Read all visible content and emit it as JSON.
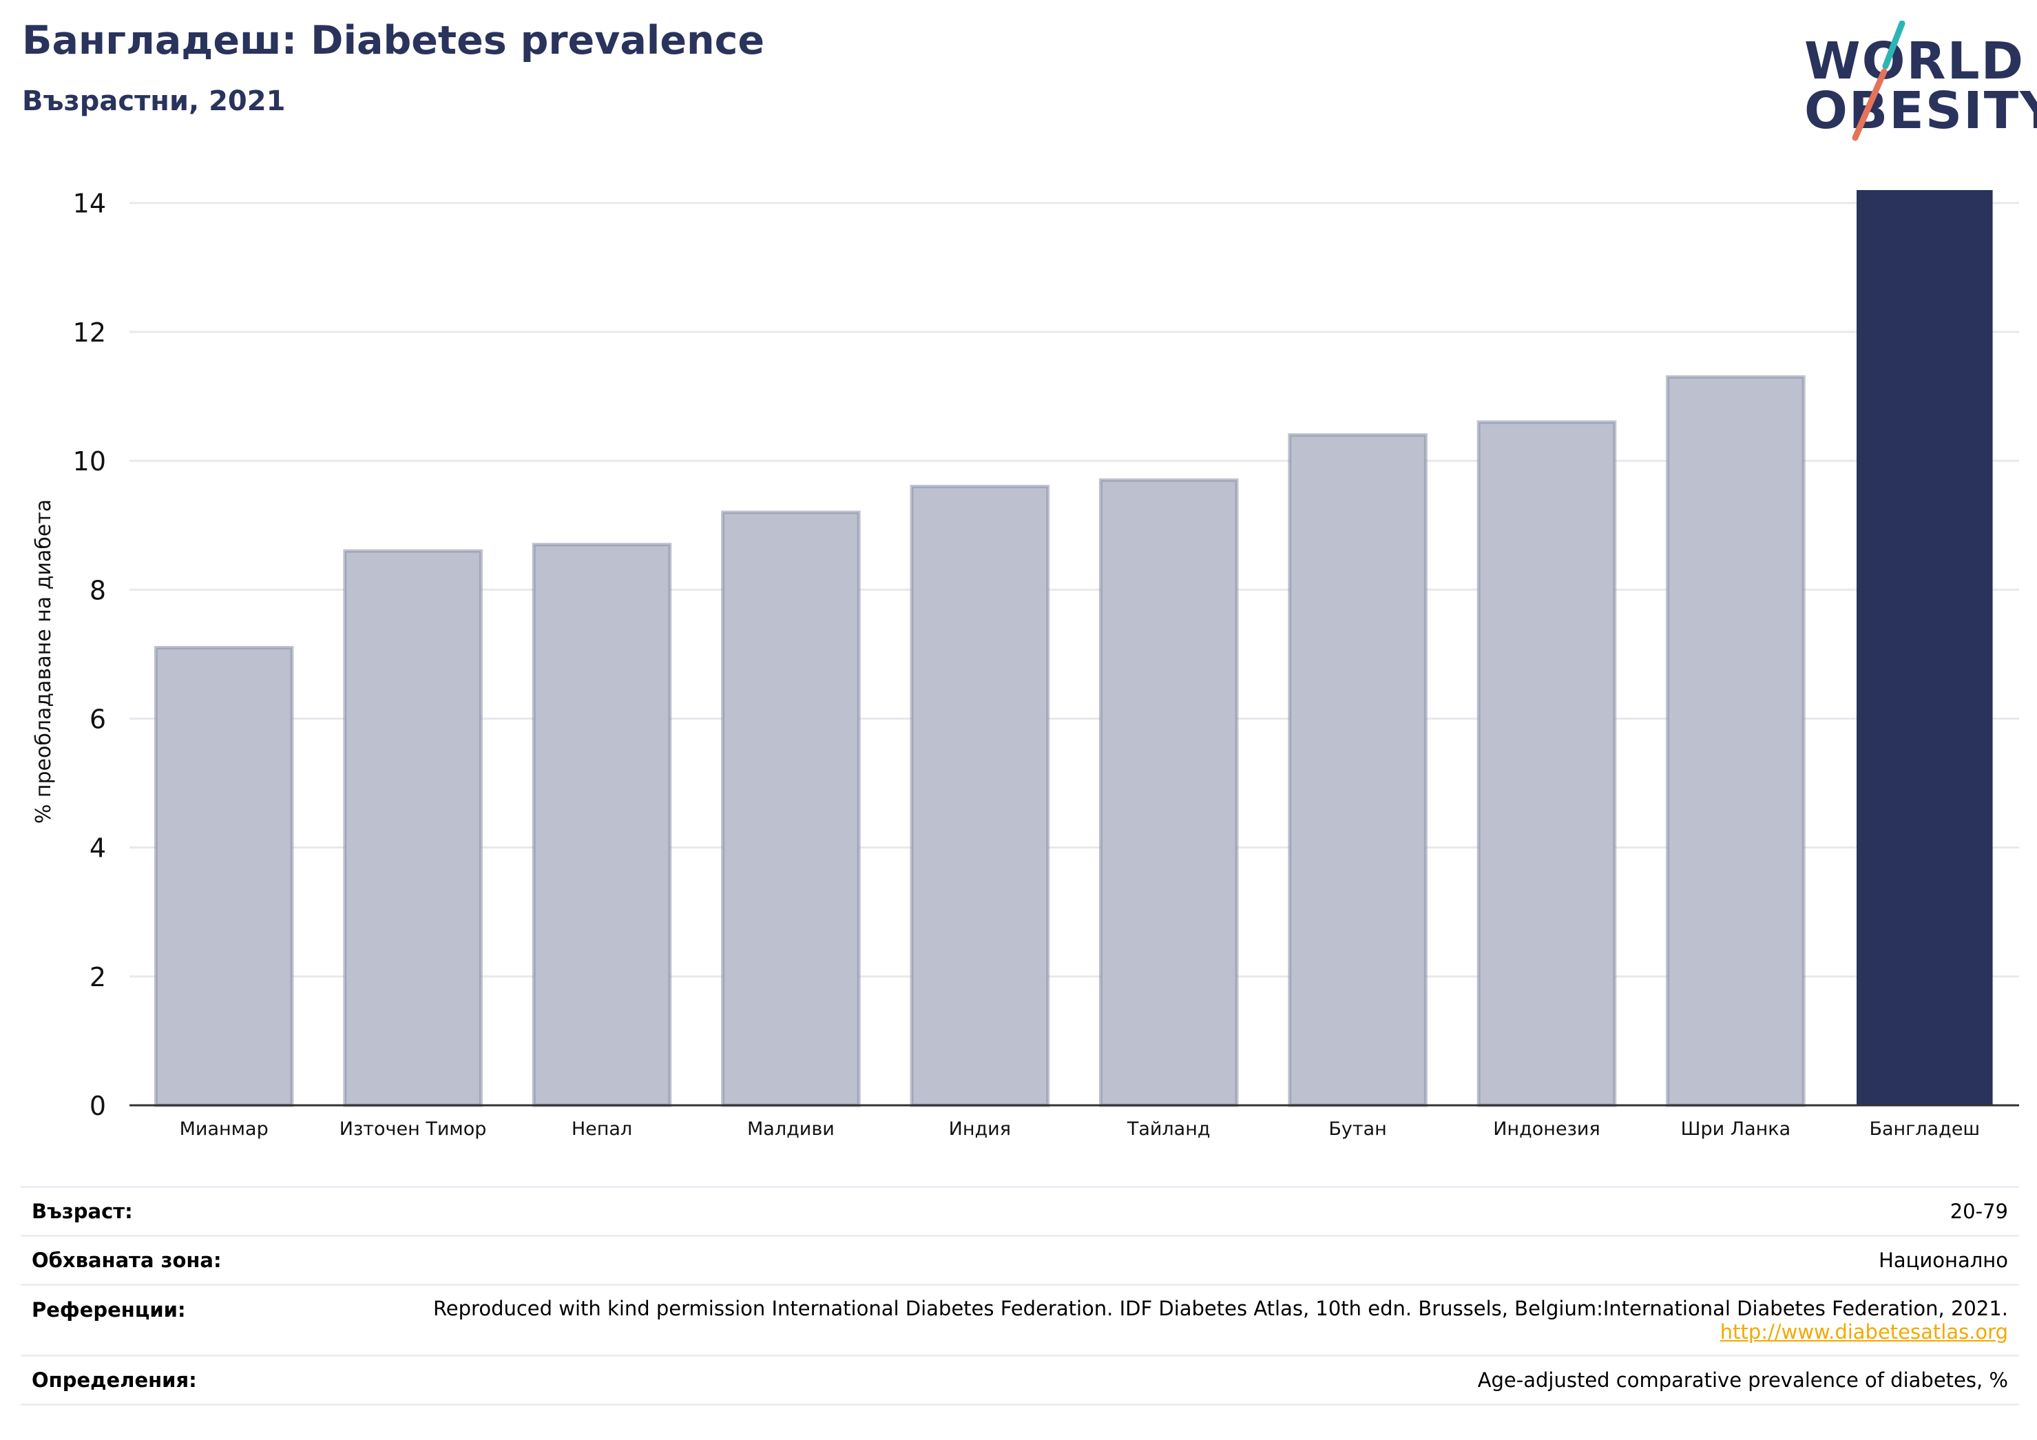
{
  "header": {
    "title": "Бангладеш: Diabetes prevalence",
    "subtitle": "Възрастни, 2021"
  },
  "logo": {
    "line1": "WORLD",
    "line2": "OBESITY",
    "slash_colors": [
      "#2db5b3",
      "#e5735a"
    ]
  },
  "colors": {
    "highlight_bar": "#29335c",
    "other_bars": "#bdc0ce",
    "other_bar_edge": "#8a8fa8",
    "link": "#f2a900"
  },
  "chart_data": {
    "type": "bar",
    "ylabel": "% преобладаване на диабета",
    "xlabel": "",
    "ylim": [
      0,
      14.2
    ],
    "yticks": [
      0,
      2,
      4,
      6,
      8,
      10,
      12,
      14
    ],
    "grid": true,
    "categories": [
      "Мианмар",
      "Източен Тимор",
      "Непал",
      "Малдиви",
      "Индия",
      "Тайланд",
      "Бутан",
      "Индонезия",
      "Шри Ланка",
      "Бангладеш"
    ],
    "values": [
      7.1,
      8.6,
      8.7,
      9.2,
      9.6,
      9.7,
      10.4,
      10.6,
      11.3,
      14.2
    ],
    "highlight": "Бангладеш"
  },
  "info": {
    "rows": [
      {
        "label": "Възраст:",
        "value": "20-79"
      },
      {
        "label": "Обхваната зона:",
        "value": "Национално"
      },
      {
        "label": "Референции:",
        "value": "Reproduced with kind permission International Diabetes Federation.  IDF Diabetes Atlas, 10th edn. Brussels, Belgium:International Diabetes Federation, 2021. ",
        "link": "http://www.diabetesatlas.org"
      },
      {
        "label": "Определения:",
        "value": "Age-adjusted comparative prevalence of diabetes, %"
      }
    ]
  }
}
